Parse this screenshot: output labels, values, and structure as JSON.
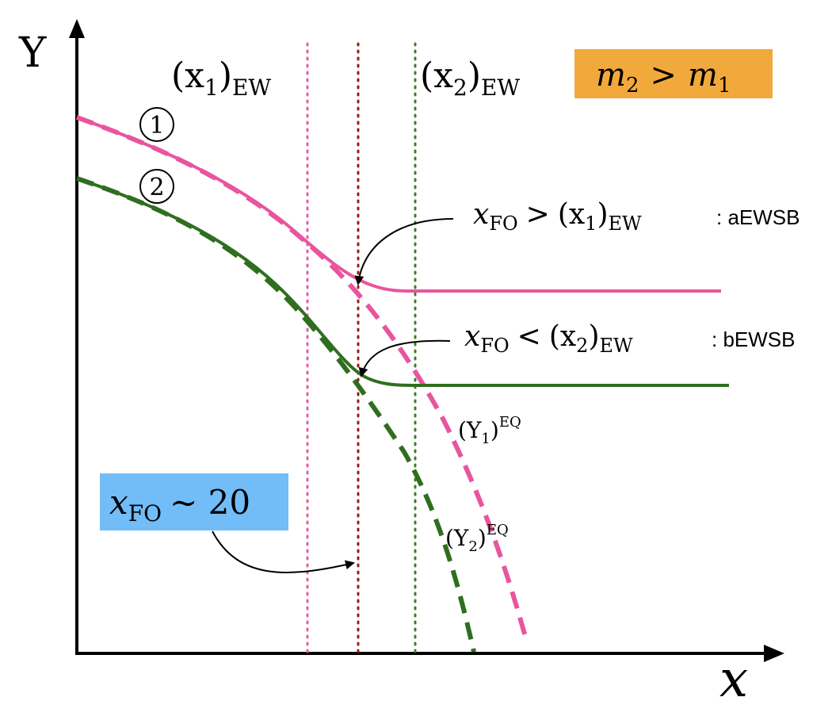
{
  "axes": {
    "y_label": "Y",
    "x_label": "x"
  },
  "vlines": {
    "x1_base": "(x",
    "x1_sub": "1",
    "x1_close": ")",
    "x1_ew": "EW",
    "x2_base": "(x",
    "x2_sub": "2",
    "x2_close": ")",
    "x2_ew": "EW"
  },
  "mass_box": {
    "m2": "m",
    "m2_sub": "2",
    "gt": ">",
    "m1": "m",
    "m1_sub": "1",
    "bg": "#f2a93b"
  },
  "circle_labels": {
    "one": "1",
    "two": "2"
  },
  "annotations": {
    "aewsb": {
      "x": "x",
      "x_sub": "FO",
      "rel": ">",
      "rhs": "(x",
      "rhs_sub": "1",
      "rhs_close": ")",
      "rhs_ew": "EW",
      "tag": ": aEWSB"
    },
    "bewsb": {
      "x": "x",
      "x_sub": "FO",
      "rel": "<",
      "rhs": "(x",
      "rhs_sub": "2",
      "rhs_close": ")",
      "rhs_ew": "EW",
      "tag": ": bEWSB"
    }
  },
  "eq_labels": {
    "y1": "(Y",
    "y1_sub": "1",
    "y1_close": ")",
    "y1_sup": "EQ",
    "y2": "(Y",
    "y2_sub": "2",
    "y2_close": ")",
    "y2_sup": "EQ"
  },
  "fo_box": {
    "x": "x",
    "sub": "FO",
    "rest": "∼ 20",
    "bg": "#72bcf7"
  },
  "colors": {
    "pink": "#e8559e",
    "green": "#2f6e1f",
    "darkred": "#9b1c10",
    "pink_dotted": "#ea5ba1",
    "green_dotted": "#3a7f24"
  }
}
